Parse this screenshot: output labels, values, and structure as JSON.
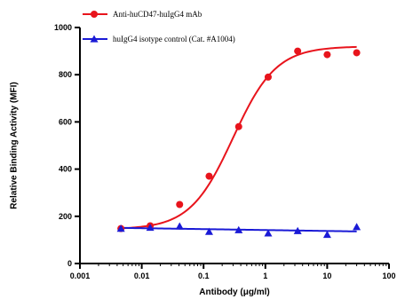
{
  "chart_data": {
    "type": "scatter",
    "title": "",
    "xlabel": "Antibody (μg/ml)",
    "ylabel": "Relative Binding Activity (MFI)",
    "x_scale": "log",
    "xlim": [
      0.001,
      100
    ],
    "ylim": [
      0,
      1000
    ],
    "x_ticks": [
      0.001,
      0.01,
      0.1,
      1,
      10,
      100
    ],
    "x_tick_labels": [
      "0.001",
      "0.01",
      "0.1",
      "1",
      "10",
      "100"
    ],
    "y_ticks": [
      0,
      200,
      400,
      600,
      800,
      1000
    ],
    "y_tick_labels": [
      "0",
      "200",
      "400",
      "600",
      "800",
      "1000"
    ],
    "grid": false,
    "legend_position": "top-left",
    "series": [
      {
        "name": "Anti-huCD47-huIgG4 mAb",
        "color": "#e8141c",
        "marker": "circle",
        "x": [
          0.0046,
          0.0137,
          0.041,
          0.123,
          0.37,
          1.11,
          3.33,
          10,
          30
        ],
        "y": [
          148,
          160,
          250,
          370,
          580,
          790,
          900,
          885,
          893
        ],
        "fit_curve": {
          "model": "four-parameter-logistic",
          "bottom": 145,
          "top": 920,
          "ec50": 0.3,
          "hill": 1.25
        }
      },
      {
        "name": "huIgG4 isotype control (Cat. #A1004)",
        "color": "#1a1ad6",
        "marker": "triangle",
        "x": [
          0.0046,
          0.0137,
          0.041,
          0.123,
          0.37,
          1.11,
          3.33,
          10,
          30
        ],
        "y": [
          148,
          152,
          158,
          135,
          142,
          128,
          138,
          122,
          155
        ],
        "fit_curve": {
          "model": "linear-in-log",
          "start": 151,
          "end": 136
        }
      }
    ]
  }
}
